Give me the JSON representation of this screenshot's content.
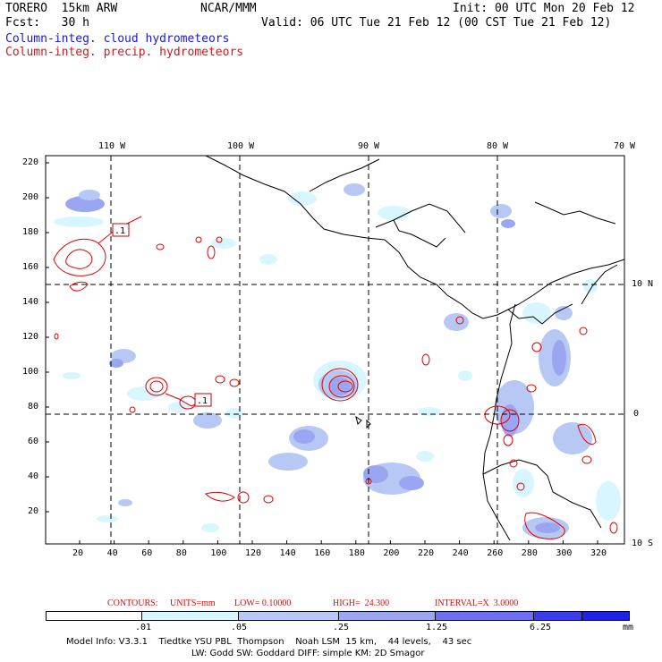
{
  "header": {
    "model": "TORERO  15km ARW",
    "org": "NCAR/MMM",
    "init": "Init: 00 UTC Mon 20 Feb 12",
    "fcst": "Fcst:   30 h",
    "valid": "Valid: 06 UTC Tue 21 Feb 12 (00 CST Tue 21 Feb 12)",
    "field_cloud": "Column-integ. cloud hydrometeors",
    "field_precip": "Column-integ. precip. hydrometeors"
  },
  "colors": {
    "cloud_label": "#1a1ad0",
    "precip_label": "#d01818",
    "contour_line": "#e00000",
    "coast": "#000000"
  },
  "axes": {
    "x_ticks": [
      "20",
      "40",
      "60",
      "80",
      "100",
      "120",
      "140",
      "160",
      "180",
      "200",
      "220",
      "240",
      "260",
      "280",
      "300",
      "320"
    ],
    "y_ticks": [
      "20",
      "40",
      "60",
      "80",
      "100",
      "120",
      "140",
      "160",
      "180",
      "200",
      "220"
    ],
    "lon_labels": [
      "110 W",
      "100 W",
      "90 W",
      "80 W",
      "70 W"
    ],
    "lat_labels": [
      "10 N",
      "0",
      "10 S"
    ]
  },
  "contour_labels": [
    ".1",
    ".1"
  ],
  "contours_caption": {
    "label": "CONTOURS:",
    "units": "UNITS=mm",
    "low": "LOW= 0.10000",
    "high": "HIGH=  24.300",
    "interval": "INTERVAL=X  3.0000"
  },
  "legend": {
    "thresholds": [
      ".01",
      ".05",
      ".25",
      "1.25",
      "6.25"
    ],
    "units": "mm",
    "colors": [
      "#ffffff",
      "#d8f6ff",
      "#b8c8f4",
      "#9aa6f2",
      "#6d6ef0",
      "#3c3cec",
      "#2222e6"
    ]
  },
  "model_info": {
    "line1": "Model Info: V3.3.1    Tiedtke YSU PBL  Thompson    Noah LSM  15 km,    44 levels,    43 sec",
    "line2": "LW: Godd SW: Goddard DIFF: simple KM: 2D Smagor"
  }
}
